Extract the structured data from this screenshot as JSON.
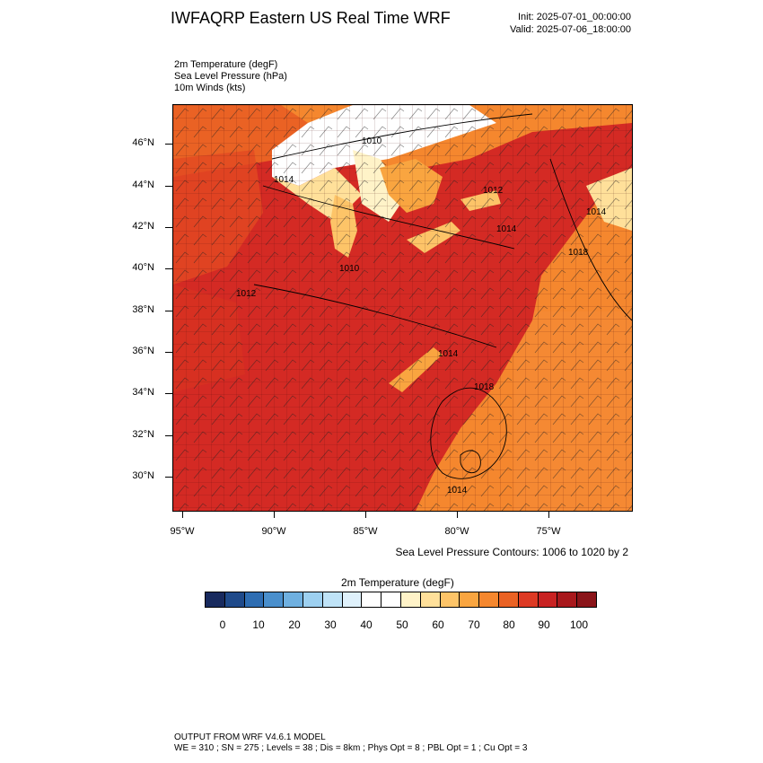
{
  "header": {
    "title": "IWFAQRP Eastern US Real Time WRF",
    "init": "Init: 2025-07-01_00:00:00",
    "valid": "Valid: 2025-07-06_18:00:00"
  },
  "fields": [
    "2m Temperature   (degF)",
    "Sea Level Pressure   (hPa)",
    "10m Winds   (kts)"
  ],
  "map": {
    "lat_labels": [
      "46°N",
      "44°N",
      "42°N",
      "40°N",
      "38°N",
      "36°N",
      "34°N",
      "32°N",
      "30°N"
    ],
    "lon_labels": [
      "95°W",
      "90°W",
      "85°W",
      "80°W",
      "75°W"
    ],
    "pressure_labels": [
      "1010",
      "1014",
      "1012",
      "1014",
      "1014",
      "1018",
      "1010",
      "1012",
      "1014",
      "1018",
      "1014"
    ]
  },
  "contour_note": "Sea Level Pressure Contours: 1006 to 1020 by 2",
  "colorbar": {
    "title": "2m Temperature  (degF)",
    "labels": [
      "0",
      "10",
      "20",
      "30",
      "40",
      "50",
      "60",
      "70",
      "80",
      "90",
      "100"
    ],
    "colors": [
      "#182a5e",
      "#1f4a8a",
      "#2e6db2",
      "#4a8fcc",
      "#6fb0e0",
      "#9dd0f0",
      "#bfe3f7",
      "#dff1fb",
      "#ffffff",
      "#ffffff",
      "#fff3c8",
      "#ffe09a",
      "#fdc468",
      "#f9a540",
      "#f5872e",
      "#ea6224",
      "#dd3a24",
      "#c82222",
      "#a8181c",
      "#8a1419"
    ]
  },
  "footer": {
    "line1": "OUTPUT FROM WRF V4.6.1 MODEL",
    "line2": "WE = 310 ; SN = 275 ; Levels = 38 ; Dis = 8km ; Phys Opt = 8 ; PBL Opt = 1 ; Cu Opt = 3"
  }
}
